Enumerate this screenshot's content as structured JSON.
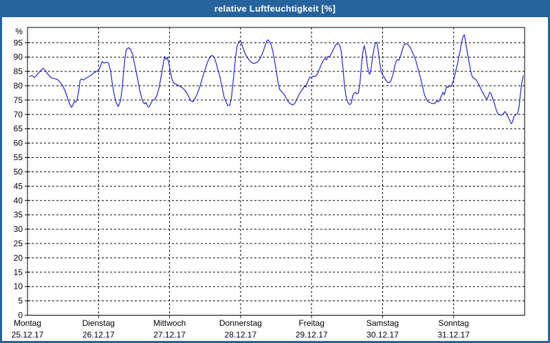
{
  "window": {
    "title": "relative Luftfeuchtigkeit [%]",
    "title_bar_color": "#26639c",
    "frame_color": "#26639c",
    "plot_background": "#ffffff"
  },
  "chart_data": {
    "type": "line",
    "title": "relative Luftfeuchtigkeit [%]",
    "ylabel": "%",
    "xlabel": "",
    "ylim": [
      0,
      100
    ],
    "y_ticks": [
      0,
      5,
      10,
      15,
      20,
      25,
      30,
      35,
      40,
      45,
      50,
      55,
      60,
      65,
      70,
      75,
      80,
      85,
      90,
      95
    ],
    "grid": "dashed-black-on-white",
    "legend": "none",
    "line_color": "#2222cc",
    "x_axis_unit": "days (t=0 is Montag 00:00, one vertical gridline per midnight)",
    "days": [
      {
        "name": "Montag",
        "date": "25.12.17"
      },
      {
        "name": "Dienstag",
        "date": "26.12.17"
      },
      {
        "name": "Mittwoch",
        "date": "27.12.17"
      },
      {
        "name": "Donnerstag",
        "date": "28.12.17"
      },
      {
        "name": "Freitag",
        "date": "29.12.17"
      },
      {
        "name": "Samstag",
        "date": "30.12.17"
      },
      {
        "name": "Sonntag",
        "date": "31.12.17"
      }
    ],
    "series": [
      {
        "name": "relative Luftfeuchtigkeit",
        "points": [
          [
            0.03,
            83.2
          ],
          [
            0.06,
            83.6
          ],
          [
            0.1,
            82.9
          ],
          [
            0.14,
            84.0
          ],
          [
            0.18,
            85.2
          ],
          [
            0.22,
            86.1
          ],
          [
            0.26,
            85.0
          ],
          [
            0.3,
            83.6
          ],
          [
            0.34,
            82.7
          ],
          [
            0.38,
            82.5
          ],
          [
            0.42,
            82.2
          ],
          [
            0.46,
            81.2
          ],
          [
            0.5,
            79.8
          ],
          [
            0.54,
            77.5
          ],
          [
            0.57,
            75.2
          ],
          [
            0.6,
            73.3
          ],
          [
            0.62,
            72.5
          ],
          [
            0.64,
            73.3
          ],
          [
            0.66,
            74.6
          ],
          [
            0.68,
            74.3
          ],
          [
            0.7,
            75.3
          ],
          [
            0.72,
            78.0
          ],
          [
            0.74,
            81.8
          ],
          [
            0.76,
            82.4
          ],
          [
            0.79,
            82.0
          ],
          [
            0.82,
            82.6
          ],
          [
            0.85,
            83.0
          ],
          [
            0.89,
            83.6
          ],
          [
            0.93,
            84.4
          ],
          [
            0.97,
            85.0
          ],
          [
            1.0,
            85.3
          ],
          [
            1.03,
            87.0
          ],
          [
            1.05,
            88.4
          ],
          [
            1.08,
            87.9
          ],
          [
            1.11,
            88.2
          ],
          [
            1.14,
            88.0
          ],
          [
            1.17,
            85.0
          ],
          [
            1.19,
            81.5
          ],
          [
            1.22,
            77.0
          ],
          [
            1.25,
            74.0
          ],
          [
            1.28,
            72.8
          ],
          [
            1.31,
            74.8
          ],
          [
            1.33,
            78.5
          ],
          [
            1.35,
            84.0
          ],
          [
            1.37,
            89.0
          ],
          [
            1.39,
            92.5
          ],
          [
            1.42,
            93.3
          ],
          [
            1.45,
            92.7
          ],
          [
            1.48,
            91.0
          ],
          [
            1.5,
            88.5
          ],
          [
            1.53,
            85.0
          ],
          [
            1.55,
            82.5
          ],
          [
            1.58,
            78.5
          ],
          [
            1.61,
            75.5
          ],
          [
            1.63,
            74.2
          ],
          [
            1.65,
            73.7
          ],
          [
            1.67,
            74.2
          ],
          [
            1.69,
            72.9
          ],
          [
            1.71,
            72.6
          ],
          [
            1.73,
            73.5
          ],
          [
            1.76,
            74.9
          ],
          [
            1.79,
            75.2
          ],
          [
            1.82,
            76.5
          ],
          [
            1.85,
            79.0
          ],
          [
            1.88,
            83.0
          ],
          [
            1.91,
            87.5
          ],
          [
            1.93,
            90.2
          ],
          [
            1.95,
            89.2
          ],
          [
            1.97,
            89.9
          ],
          [
            1.99,
            87.8
          ],
          [
            2.01,
            85.2
          ],
          [
            2.03,
            82.8
          ],
          [
            2.05,
            81.2
          ],
          [
            2.08,
            80.6
          ],
          [
            2.11,
            80.3
          ],
          [
            2.14,
            79.9
          ],
          [
            2.18,
            79.3
          ],
          [
            2.21,
            78.6
          ],
          [
            2.24,
            77.6
          ],
          [
            2.27,
            76.2
          ],
          [
            2.3,
            74.8
          ],
          [
            2.33,
            74.4
          ],
          [
            2.36,
            75.6
          ],
          [
            2.39,
            77.2
          ],
          [
            2.42,
            79.2
          ],
          [
            2.45,
            81.6
          ],
          [
            2.48,
            84.2
          ],
          [
            2.51,
            86.4
          ],
          [
            2.54,
            88.6
          ],
          [
            2.57,
            90.1
          ],
          [
            2.6,
            90.6
          ],
          [
            2.63,
            89.8
          ],
          [
            2.66,
            87.6
          ],
          [
            2.68,
            85.6
          ],
          [
            2.71,
            83.2
          ],
          [
            2.73,
            80.6
          ],
          [
            2.75,
            78.2
          ],
          [
            2.77,
            75.9
          ],
          [
            2.8,
            74.2
          ],
          [
            2.82,
            73.1
          ],
          [
            2.85,
            73.3
          ],
          [
            2.87,
            75.5
          ],
          [
            2.89,
            80.0
          ],
          [
            2.91,
            85.0
          ],
          [
            2.93,
            90.0
          ],
          [
            2.95,
            93.5
          ],
          [
            2.97,
            95.3
          ],
          [
            2.99,
            95.6
          ],
          [
            3.01,
            95.0
          ],
          [
            3.03,
            93.5
          ],
          [
            3.06,
            91.5
          ],
          [
            3.09,
            90.0
          ],
          [
            3.12,
            89.0
          ],
          [
            3.15,
            88.2
          ],
          [
            3.18,
            87.8
          ],
          [
            3.21,
            87.9
          ],
          [
            3.24,
            88.3
          ],
          [
            3.27,
            89.3
          ],
          [
            3.3,
            90.8
          ],
          [
            3.33,
            92.8
          ],
          [
            3.35,
            94.5
          ],
          [
            3.37,
            95.7
          ],
          [
            3.39,
            96.0
          ],
          [
            3.41,
            95.3
          ],
          [
            3.43,
            94.3
          ],
          [
            3.45,
            92.5
          ],
          [
            3.47,
            90.0
          ],
          [
            3.49,
            87.0
          ],
          [
            3.51,
            84.0
          ],
          [
            3.53,
            81.0
          ],
          [
            3.55,
            78.8
          ],
          [
            3.58,
            77.8
          ],
          [
            3.61,
            77.2
          ],
          [
            3.64,
            75.8
          ],
          [
            3.67,
            74.5
          ],
          [
            3.7,
            73.8
          ],
          [
            3.73,
            73.3
          ],
          [
            3.76,
            73.7
          ],
          [
            3.79,
            75.2
          ],
          [
            3.82,
            76.8
          ],
          [
            3.85,
            78.1
          ],
          [
            3.88,
            79.0
          ],
          [
            3.9,
            80.0
          ],
          [
            3.92,
            79.5
          ],
          [
            3.94,
            81.0
          ],
          [
            3.96,
            82.3
          ],
          [
            3.98,
            83.1
          ],
          [
            4.0,
            82.8
          ],
          [
            4.02,
            83.3
          ],
          [
            4.05,
            83.2
          ],
          [
            4.08,
            84.0
          ],
          [
            4.11,
            85.8
          ],
          [
            4.14,
            87.6
          ],
          [
            4.17,
            89.0
          ],
          [
            4.19,
            89.6
          ],
          [
            4.21,
            89.0
          ],
          [
            4.23,
            90.3
          ],
          [
            4.25,
            90.0
          ],
          [
            4.27,
            90.8
          ],
          [
            4.3,
            92.3
          ],
          [
            4.33,
            93.8
          ],
          [
            4.35,
            94.6
          ],
          [
            4.38,
            94.5
          ],
          [
            4.4,
            94.0
          ],
          [
            4.42,
            91.5
          ],
          [
            4.44,
            86.5
          ],
          [
            4.46,
            81.0
          ],
          [
            4.48,
            77.0
          ],
          [
            4.5,
            75.0
          ],
          [
            4.52,
            73.9
          ],
          [
            4.54,
            73.4
          ],
          [
            4.56,
            74.0
          ],
          [
            4.58,
            76.5
          ],
          [
            4.6,
            77.5
          ],
          [
            4.62,
            77.7
          ],
          [
            4.64,
            77.2
          ],
          [
            4.66,
            77.6
          ],
          [
            4.68,
            80.5
          ],
          [
            4.7,
            86.5
          ],
          [
            4.72,
            91.5
          ],
          [
            4.74,
            94.0
          ],
          [
            4.76,
            92.0
          ],
          [
            4.78,
            88.0
          ],
          [
            4.8,
            85.0
          ],
          [
            4.82,
            84.0
          ],
          [
            4.84,
            86.3
          ],
          [
            4.86,
            90.0
          ],
          [
            4.88,
            93.0
          ],
          [
            4.9,
            95.0
          ],
          [
            4.92,
            95.2
          ],
          [
            4.94,
            92.0
          ],
          [
            4.96,
            88.0
          ],
          [
            4.98,
            85.0
          ],
          [
            5.0,
            83.8
          ],
          [
            5.02,
            83.0
          ],
          [
            5.05,
            81.8
          ],
          [
            5.08,
            81.0
          ],
          [
            5.11,
            81.4
          ],
          [
            5.13,
            82.6
          ],
          [
            5.15,
            84.2
          ],
          [
            5.17,
            86.8
          ],
          [
            5.19,
            88.4
          ],
          [
            5.21,
            89.2
          ],
          [
            5.23,
            88.9
          ],
          [
            5.25,
            90.1
          ],
          [
            5.27,
            91.8
          ],
          [
            5.29,
            93.5
          ],
          [
            5.31,
            94.5
          ],
          [
            5.33,
            94.7
          ],
          [
            5.36,
            94.3
          ],
          [
            5.39,
            93.4
          ],
          [
            5.41,
            92.2
          ],
          [
            5.44,
            90.6
          ],
          [
            5.47,
            88.6
          ],
          [
            5.5,
            85.8
          ],
          [
            5.53,
            83.2
          ],
          [
            5.56,
            80.0
          ],
          [
            5.59,
            76.9
          ],
          [
            5.62,
            75.2
          ],
          [
            5.65,
            74.3
          ],
          [
            5.68,
            74.0
          ],
          [
            5.71,
            73.8
          ],
          [
            5.74,
            73.9
          ],
          [
            5.76,
            74.7
          ],
          [
            5.79,
            74.4
          ],
          [
            5.82,
            76.0
          ],
          [
            5.85,
            77.7
          ],
          [
            5.87,
            76.9
          ],
          [
            5.9,
            79.8
          ],
          [
            5.92,
            79.4
          ],
          [
            5.94,
            80.1
          ],
          [
            5.96,
            79.7
          ],
          [
            5.99,
            81.2
          ],
          [
            6.01,
            83.0
          ],
          [
            6.03,
            85.2
          ],
          [
            6.05,
            87.2
          ],
          [
            6.07,
            89.5
          ],
          [
            6.09,
            92.0
          ],
          [
            6.11,
            94.8
          ],
          [
            6.13,
            97.0
          ],
          [
            6.15,
            97.8
          ],
          [
            6.16,
            96.8
          ],
          [
            6.18,
            93.5
          ],
          [
            6.2,
            90.5
          ],
          [
            6.22,
            88.0
          ],
          [
            6.24,
            85.2
          ],
          [
            6.26,
            83.3
          ],
          [
            6.28,
            82.6
          ],
          [
            6.31,
            82.3
          ],
          [
            6.33,
            81.5
          ],
          [
            6.36,
            80.2
          ],
          [
            6.39,
            78.6
          ],
          [
            6.42,
            77.2
          ],
          [
            6.45,
            75.8
          ],
          [
            6.47,
            75.3
          ],
          [
            6.49,
            76.5
          ],
          [
            6.51,
            77.7
          ],
          [
            6.53,
            77.1
          ],
          [
            6.55,
            75.6
          ],
          [
            6.58,
            73.4
          ],
          [
            6.6,
            71.6
          ],
          [
            6.62,
            70.4
          ],
          [
            6.64,
            69.9
          ],
          [
            6.67,
            69.7
          ],
          [
            6.7,
            70.2
          ],
          [
            6.72,
            71.0
          ],
          [
            6.74,
            70.4
          ],
          [
            6.76,
            69.6
          ],
          [
            6.79,
            68.0
          ],
          [
            6.81,
            66.8
          ],
          [
            6.83,
            67.4
          ],
          [
            6.85,
            69.3
          ],
          [
            6.88,
            70.0
          ],
          [
            6.9,
            70.3
          ],
          [
            6.92,
            72.3
          ],
          [
            6.94,
            77.0
          ],
          [
            6.96,
            81.0
          ],
          [
            6.98,
            83.5
          ]
        ]
      }
    ]
  }
}
